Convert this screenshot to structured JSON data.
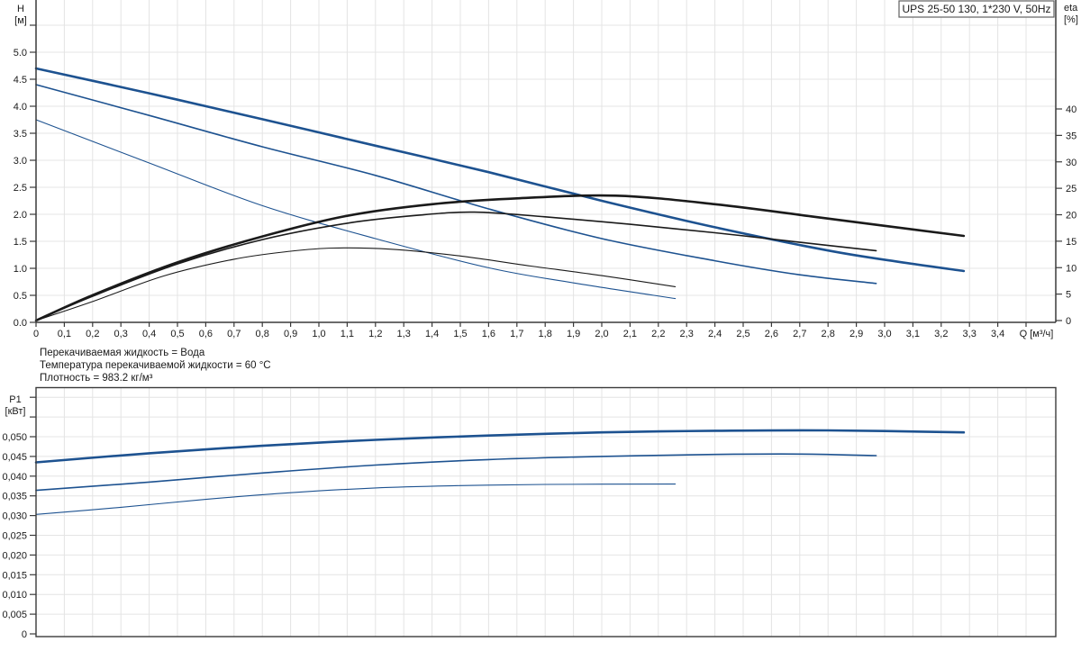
{
  "title_box": {
    "label": "UPS 25-50 130, 1*230 V, 50Hz"
  },
  "annotations": [
    "Перекачиваемая жидкость = Вода",
    "Температура перекачиваемой жидкости = 60 °C",
    "Плотность = 983.2 кг/м³"
  ],
  "colors": {
    "curve_blue": "#1d5290",
    "curve_black": "#1a1a1a",
    "grid": "#e4e4e4",
    "axis": "#3a3a3a",
    "text": "#1a1a1a",
    "box_border": "#606060"
  },
  "chart_data": [
    {
      "type": "line",
      "id": "head-and-efficiency",
      "x_axis": {
        "min": 0,
        "max": 3.6,
        "tick_step": 0.1,
        "grid": true,
        "unit_label": "Q [м³/ч]",
        "tick_labels": [
          "0",
          "0,1",
          "0,2",
          "0,3",
          "0,4",
          "0,5",
          "0,6",
          "0,7",
          "0,8",
          "0,9",
          "1,0",
          "1,1",
          "1,2",
          "1,3",
          "1,4",
          "1,5",
          "1,6",
          "1,7",
          "1,8",
          "1,9",
          "2,0",
          "2,1",
          "2,2",
          "2,3",
          "2,4",
          "2,5",
          "2,6",
          "2,7",
          "2,8",
          "2,9",
          "3,0",
          "3,1",
          "3,2",
          "3,3",
          "3,4"
        ]
      },
      "y_left": {
        "name": "H",
        "unit": "[м]",
        "min": 0,
        "max": 5.95,
        "tick_step": 0.5,
        "tick_labels": [
          "0.0",
          "0.5",
          "1.0",
          "1.5",
          "2.0",
          "2.5",
          "3.0",
          "3.5",
          "4.0",
          "4.5",
          "5.0"
        ],
        "extra_unlabeled_ticks": [
          5.5
        ]
      },
      "y_right": {
        "name": "eta",
        "unit": "[%]",
        "min": 0,
        "max": 58,
        "tick_step": 5,
        "tick_labels": [
          "0",
          "5",
          "10",
          "15",
          "20",
          "25",
          "30",
          "35",
          "40"
        ]
      },
      "legend": "none",
      "series": [
        {
          "name": "head-speed-3",
          "axis": "left",
          "color": "blue",
          "width": 2.6,
          "points": [
            [
              0,
              4.7
            ],
            [
              0.4,
              4.24
            ],
            [
              0.8,
              3.76
            ],
            [
              1.2,
              3.27
            ],
            [
              1.6,
              2.78
            ],
            [
              2.0,
              2.25
            ],
            [
              2.4,
              1.76
            ],
            [
              2.8,
              1.33
            ],
            [
              3.05,
              1.12
            ],
            [
              3.28,
              0.95
            ]
          ]
        },
        {
          "name": "head-speed-2",
          "axis": "left",
          "color": "blue",
          "width": 1.6,
          "points": [
            [
              0,
              4.4
            ],
            [
              0.4,
              3.83
            ],
            [
              0.8,
              3.25
            ],
            [
              1.2,
              2.72
            ],
            [
              1.6,
              2.1
            ],
            [
              2.0,
              1.55
            ],
            [
              2.4,
              1.14
            ],
            [
              2.7,
              0.88
            ],
            [
              2.97,
              0.72
            ]
          ]
        },
        {
          "name": "head-speed-1",
          "axis": "left",
          "color": "blue",
          "width": 1.1,
          "points": [
            [
              0,
              3.75
            ],
            [
              0.4,
              2.95
            ],
            [
              0.8,
              2.16
            ],
            [
              1.2,
              1.55
            ],
            [
              1.6,
              1.01
            ],
            [
              1.9,
              0.73
            ],
            [
              2.26,
              0.44
            ]
          ]
        },
        {
          "name": "efficiency-speed-3",
          "axis": "right",
          "color": "black",
          "width": 2.6,
          "points": [
            [
              0,
              0
            ],
            [
              0.2,
              4.8
            ],
            [
              0.5,
              11.0
            ],
            [
              0.8,
              15.9
            ],
            [
              1.1,
              19.8
            ],
            [
              1.4,
              22.0
            ],
            [
              1.7,
              23.1
            ],
            [
              2.05,
              23.6
            ],
            [
              2.4,
              22.0
            ],
            [
              2.74,
              19.7
            ],
            [
              3.0,
              17.9
            ],
            [
              3.28,
              16.0
            ]
          ]
        },
        {
          "name": "efficiency-speed-2",
          "axis": "right",
          "color": "black",
          "width": 1.6,
          "points": [
            [
              0,
              0
            ],
            [
              0.2,
              4.6
            ],
            [
              0.5,
              10.7
            ],
            [
              0.8,
              15.3
            ],
            [
              1.1,
              18.4
            ],
            [
              1.35,
              19.9
            ],
            [
              1.55,
              20.5
            ],
            [
              1.8,
              19.6
            ],
            [
              2.1,
              18.2
            ],
            [
              2.4,
              16.6
            ],
            [
              2.7,
              14.8
            ],
            [
              2.97,
              13.2
            ]
          ]
        },
        {
          "name": "efficiency-speed-1",
          "axis": "right",
          "color": "black",
          "width": 1.1,
          "points": [
            [
              0,
              0
            ],
            [
              0.2,
              3.6
            ],
            [
              0.45,
              8.4
            ],
            [
              0.7,
              11.6
            ],
            [
              0.9,
              13.1
            ],
            [
              1.05,
              13.7
            ],
            [
              1.25,
              13.5
            ],
            [
              1.5,
              12.2
            ],
            [
              1.75,
              10.3
            ],
            [
              2.0,
              8.5
            ],
            [
              2.26,
              6.4
            ]
          ]
        }
      ]
    },
    {
      "type": "line",
      "id": "power",
      "x_axis": {
        "min": 0,
        "max": 3.6,
        "tick_step": 0.1,
        "grid": true,
        "tick_labels": []
      },
      "y_left": {
        "name": "P1",
        "unit": "[кВт]",
        "min": 0,
        "max": 0.0625,
        "tick_step": 0.005,
        "tick_labels": [
          "0",
          "0,005",
          "0,010",
          "0,015",
          "0,020",
          "0,025",
          "0,030",
          "0,035",
          "0,040",
          "0,045",
          "0,050"
        ],
        "extra_unlabeled_ticks": [
          0.055,
          0.06
        ]
      },
      "legend": "none",
      "series": [
        {
          "name": "power-speed-3",
          "axis": "left",
          "color": "blue",
          "width": 2.6,
          "points": [
            [
              0,
              0.0435
            ],
            [
              0.4,
              0.0458
            ],
            [
              0.8,
              0.0477
            ],
            [
              1.2,
              0.0492
            ],
            [
              1.6,
              0.0503
            ],
            [
              2.0,
              0.0511
            ],
            [
              2.4,
              0.0515
            ],
            [
              2.8,
              0.0516
            ],
            [
              3.28,
              0.0511
            ]
          ]
        },
        {
          "name": "power-speed-2",
          "axis": "left",
          "color": "blue",
          "width": 1.6,
          "points": [
            [
              0,
              0.0364
            ],
            [
              0.4,
              0.0385
            ],
            [
              0.8,
              0.0408
            ],
            [
              1.2,
              0.0428
            ],
            [
              1.6,
              0.0442
            ],
            [
              2.0,
              0.045
            ],
            [
              2.4,
              0.0455
            ],
            [
              2.7,
              0.0456
            ],
            [
              2.97,
              0.0452
            ]
          ]
        },
        {
          "name": "power-speed-1",
          "axis": "left",
          "color": "blue",
          "width": 1.1,
          "points": [
            [
              0,
              0.0303
            ],
            [
              0.3,
              0.0321
            ],
            [
              0.6,
              0.0341
            ],
            [
              0.9,
              0.0358
            ],
            [
              1.2,
              0.037
            ],
            [
              1.5,
              0.0376
            ],
            [
              1.8,
              0.0379
            ],
            [
              2.26,
              0.038
            ]
          ]
        }
      ]
    }
  ]
}
